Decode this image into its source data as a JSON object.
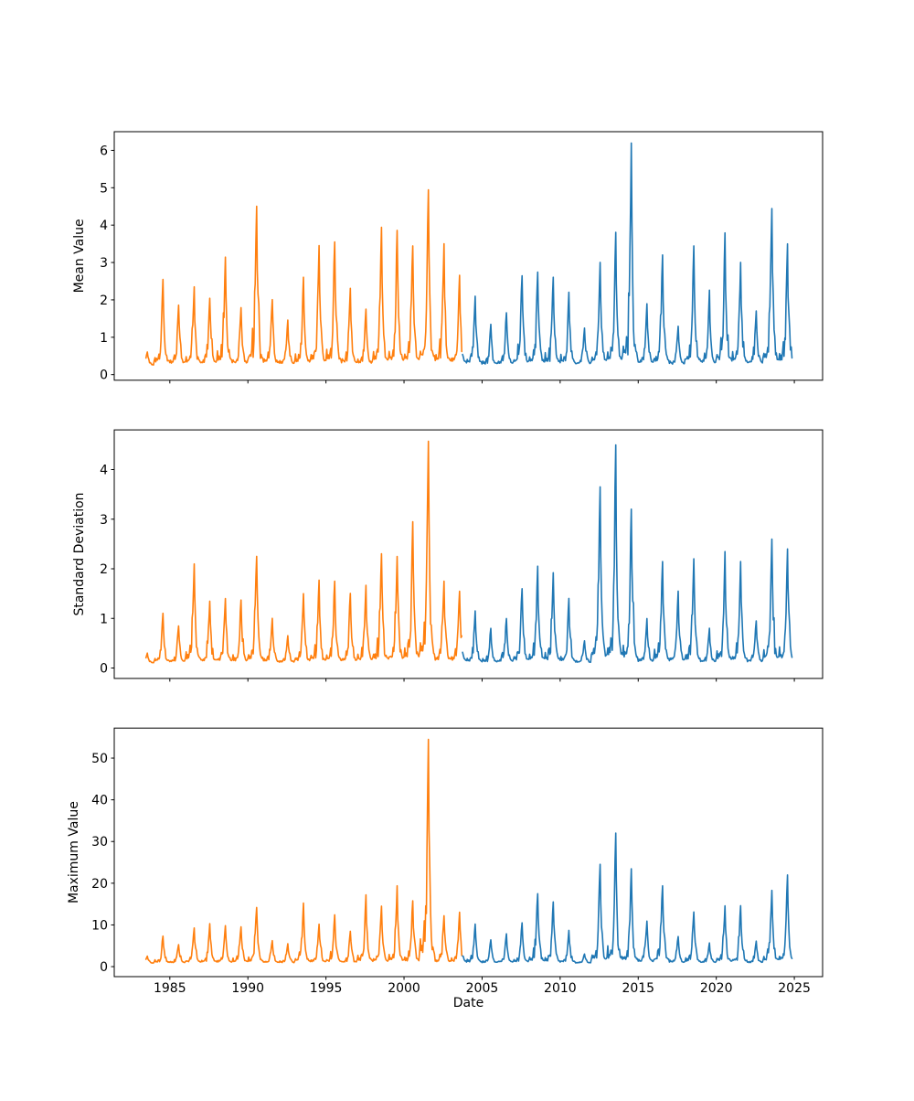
{
  "figure": {
    "background": "#ffffff",
    "xlabel": "Date"
  },
  "chart_data": [
    {
      "id": "mean-value",
      "type": "line",
      "title": "",
      "ylabel": "Mean Value",
      "xlabel": "Date",
      "xlim": [
        1981.44,
        2026.81
      ],
      "ylim": [
        -0.15,
        6.5
      ],
      "xticks": [
        1985,
        1990,
        1995,
        2000,
        2005,
        2010,
        2015,
        2020,
        2025
      ],
      "yticks": [
        0,
        1,
        2,
        3,
        4,
        5,
        6
      ],
      "show_x_tick_labels": false,
      "grid": false,
      "legend": "none",
      "baseline": 0.25,
      "series": [
        {
          "name": "segment-1983-2003",
          "color": "#ff7f0e",
          "start_frac": 0.45,
          "end_frac": 0.7,
          "annual_peaks": [
            [
              1983,
              0.6
            ],
            [
              1984,
              2.55
            ],
            [
              1985,
              1.85
            ],
            [
              1986,
              2.35
            ],
            [
              1987,
              2.05
            ],
            [
              1988,
              3.15
            ],
            [
              1989,
              1.8
            ],
            [
              1990,
              4.5
            ],
            [
              1991,
              2.0
            ],
            [
              1992,
              1.45
            ],
            [
              1993,
              2.6
            ],
            [
              1994,
              3.45
            ],
            [
              1995,
              3.55
            ],
            [
              1996,
              2.3
            ],
            [
              1997,
              1.75
            ],
            [
              1998,
              3.95
            ],
            [
              1999,
              3.85
            ],
            [
              2000,
              3.45
            ],
            [
              2001,
              4.95
            ],
            [
              2002,
              3.5
            ],
            [
              2003,
              2.65
            ]
          ]
        },
        {
          "name": "segment-2003-2024",
          "color": "#1f77b4",
          "start_frac": 0.72,
          "end_frac": 0.85,
          "annual_peaks": [
            [
              2003,
              2.6
            ],
            [
              2004,
              2.1
            ],
            [
              2005,
              1.35
            ],
            [
              2006,
              1.65
            ],
            [
              2007,
              2.65
            ],
            [
              2008,
              2.75
            ],
            [
              2009,
              2.6
            ],
            [
              2010,
              2.2
            ],
            [
              2011,
              1.25
            ],
            [
              2012,
              3.0
            ],
            [
              2013,
              3.8
            ],
            [
              2014,
              6.2
            ],
            [
              2015,
              1.9
            ],
            [
              2016,
              3.2
            ],
            [
              2017,
              1.3
            ],
            [
              2018,
              3.45
            ],
            [
              2019,
              2.25
            ],
            [
              2020,
              3.8
            ],
            [
              2021,
              3.0
            ],
            [
              2022,
              1.7
            ],
            [
              2023,
              4.45
            ],
            [
              2024,
              3.5
            ]
          ]
        }
      ]
    },
    {
      "id": "standard-deviation",
      "type": "line",
      "title": "",
      "ylabel": "Standard Deviation",
      "xlabel": "Date",
      "xlim": [
        1981.44,
        2026.81
      ],
      "ylim": [
        -0.21,
        4.8
      ],
      "xticks": [
        1985,
        1990,
        1995,
        2000,
        2005,
        2010,
        2015,
        2020,
        2025
      ],
      "yticks": [
        0,
        1,
        2,
        3,
        4
      ],
      "show_x_tick_labels": false,
      "grid": false,
      "legend": "none",
      "baseline": 0.1,
      "series": [
        {
          "name": "segment-1983-2003",
          "color": "#ff7f0e",
          "start_frac": 0.45,
          "end_frac": 0.7,
          "annual_peaks": [
            [
              1983,
              0.3
            ],
            [
              1984,
              1.1
            ],
            [
              1985,
              0.85
            ],
            [
              1986,
              2.1
            ],
            [
              1987,
              1.35
            ],
            [
              1988,
              1.4
            ],
            [
              1989,
              1.37
            ],
            [
              1990,
              2.25
            ],
            [
              1991,
              1.0
            ],
            [
              1992,
              0.65
            ],
            [
              1993,
              1.5
            ],
            [
              1994,
              1.77
            ],
            [
              1995,
              1.75
            ],
            [
              1996,
              1.5
            ],
            [
              1997,
              1.67
            ],
            [
              1998,
              2.3
            ],
            [
              1999,
              2.25
            ],
            [
              2000,
              2.95
            ],
            [
              2001,
              4.57
            ],
            [
              2002,
              1.75
            ],
            [
              2003,
              1.55
            ]
          ]
        },
        {
          "name": "segment-2003-2024",
          "color": "#1f77b4",
          "start_frac": 0.72,
          "end_frac": 0.85,
          "annual_peaks": [
            [
              2003,
              1.5
            ],
            [
              2004,
              1.15
            ],
            [
              2005,
              0.8
            ],
            [
              2006,
              1.0
            ],
            [
              2007,
              1.6
            ],
            [
              2008,
              2.05
            ],
            [
              2009,
              1.92
            ],
            [
              2010,
              1.4
            ],
            [
              2011,
              0.55
            ],
            [
              2012,
              3.65
            ],
            [
              2013,
              4.5
            ],
            [
              2014,
              3.2
            ],
            [
              2015,
              1.0
            ],
            [
              2016,
              2.15
            ],
            [
              2017,
              1.55
            ],
            [
              2018,
              2.2
            ],
            [
              2019,
              0.8
            ],
            [
              2020,
              2.35
            ],
            [
              2021,
              2.15
            ],
            [
              2022,
              0.95
            ],
            [
              2023,
              2.6
            ],
            [
              2024,
              2.4
            ]
          ]
        }
      ]
    },
    {
      "id": "maximum-value",
      "type": "line",
      "title": "",
      "ylabel": "Maximum Value",
      "xlabel": "Date",
      "xlim": [
        1981.44,
        2026.81
      ],
      "ylim": [
        -2.4,
        57.2
      ],
      "xticks": [
        1985,
        1990,
        1995,
        2000,
        2005,
        2010,
        2015,
        2020,
        2025
      ],
      "yticks": [
        0,
        10,
        20,
        30,
        40,
        50
      ],
      "show_x_tick_labels": true,
      "grid": false,
      "legend": "none",
      "baseline": 0.8,
      "series": [
        {
          "name": "segment-1983-2003",
          "color": "#ff7f0e",
          "start_frac": 0.45,
          "end_frac": 0.7,
          "annual_peaks": [
            [
              1983,
              2.5
            ],
            [
              1984,
              7.3
            ],
            [
              1985,
              5.3
            ],
            [
              1986,
              9.3
            ],
            [
              1987,
              10.3
            ],
            [
              1988,
              9.8
            ],
            [
              1989,
              9.5
            ],
            [
              1990,
              14.2
            ],
            [
              1991,
              6.2
            ],
            [
              1992,
              5.5
            ],
            [
              1993,
              15.2
            ],
            [
              1994,
              10.2
            ],
            [
              1995,
              12.4
            ],
            [
              1996,
              8.5
            ],
            [
              1997,
              17.2
            ],
            [
              1998,
              14.5
            ],
            [
              1999,
              19.4
            ],
            [
              2000,
              15.8
            ],
            [
              2001,
              54.5
            ],
            [
              2002,
              12.2
            ],
            [
              2003,
              13.0
            ]
          ]
        },
        {
          "name": "segment-2003-2024",
          "color": "#1f77b4",
          "start_frac": 0.72,
          "end_frac": 0.85,
          "annual_peaks": [
            [
              2003,
              12.0
            ],
            [
              2004,
              10.2
            ],
            [
              2005,
              6.4
            ],
            [
              2006,
              7.9
            ],
            [
              2007,
              10.5
            ],
            [
              2008,
              17.5
            ],
            [
              2009,
              15.5
            ],
            [
              2010,
              8.7
            ],
            [
              2011,
              3.0
            ],
            [
              2012,
              24.5
            ],
            [
              2013,
              32.0
            ],
            [
              2014,
              23.5
            ],
            [
              2015,
              10.9
            ],
            [
              2016,
              19.4
            ],
            [
              2017,
              7.2
            ],
            [
              2018,
              13.1
            ],
            [
              2019,
              5.7
            ],
            [
              2020,
              14.6
            ],
            [
              2021,
              14.6
            ],
            [
              2022,
              6.1
            ],
            [
              2023,
              18.3
            ],
            [
              2024,
              22.0
            ]
          ]
        }
      ]
    }
  ]
}
